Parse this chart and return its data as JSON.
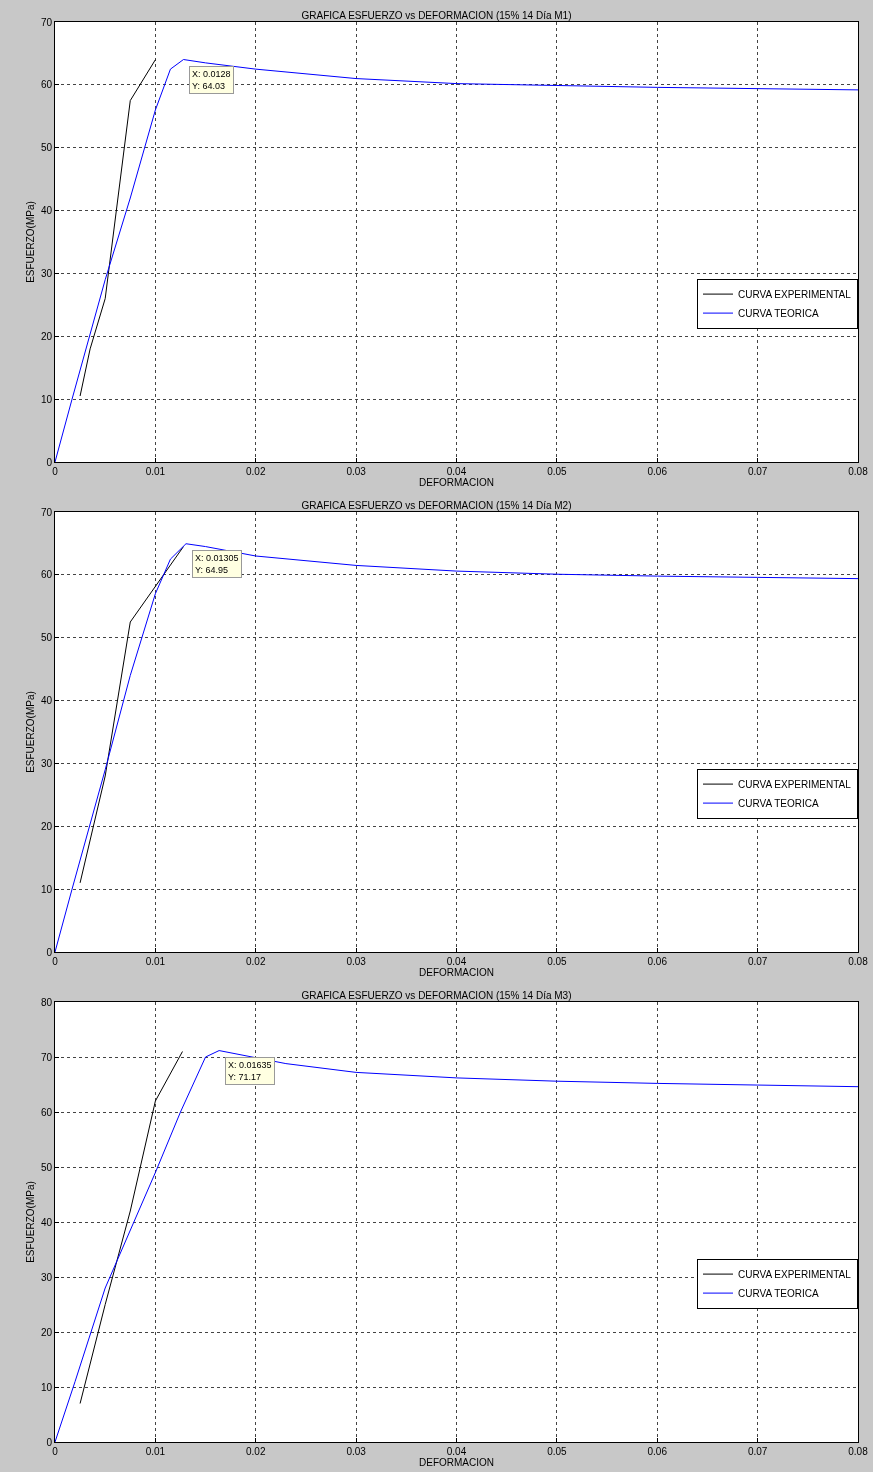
{
  "chart_data": [
    {
      "type": "line",
      "title": "GRAFICA ESFUERZO vs DEFORMACION (15% 14 Día M1)",
      "xlabel": "DEFORMACION",
      "ylabel": "ESFUERZO(MPa)",
      "xlim": [
        0,
        0.08
      ],
      "xticks": [
        0,
        0.01,
        0.02,
        0.03,
        0.04,
        0.05,
        0.06,
        0.07,
        0.08
      ],
      "ylim": [
        0,
        70
      ],
      "yticks": [
        0,
        10,
        20,
        30,
        40,
        50,
        60,
        70
      ],
      "grid": true,
      "legend": "right",
      "line_style": "solid",
      "marker": "none",
      "series": [
        {
          "name": "CURVA EXPERIMENTAL",
          "color": "#000000",
          "x": [
            0.0025,
            0.0035,
            0.005,
            0.0075,
            0.01
          ],
          "values": [
            10.5,
            18,
            26,
            57.5,
            64
          ]
        },
        {
          "name": "CURVA TEORICA",
          "color": "#0000ff",
          "x": [
            0,
            0.0017,
            0.005,
            0.0075,
            0.01,
            0.0115,
            0.0128,
            0.015,
            0.02,
            0.03,
            0.04,
            0.05,
            0.06,
            0.07,
            0.08
          ],
          "values": [
            0,
            10,
            29,
            42,
            56,
            62.5,
            64.03,
            63.5,
            62.5,
            61,
            60.2,
            59.9,
            59.6,
            59.4,
            59.2
          ]
        }
      ],
      "annotations": [
        {
          "text": "X: 0.0128\nY: 64.03",
          "x": 0.0128,
          "y": 64.03
        }
      ]
    },
    {
      "type": "line",
      "title": "GRAFICA ESFUERZO vs DEFORMACION (15% 14 Día M2)",
      "xlabel": "DEFORMACION",
      "ylabel": "ESFUERZO(MPa)",
      "xlim": [
        0,
        0.08
      ],
      "xticks": [
        0,
        0.01,
        0.02,
        0.03,
        0.04,
        0.05,
        0.06,
        0.07,
        0.08
      ],
      "ylim": [
        0,
        70
      ],
      "yticks": [
        0,
        10,
        20,
        30,
        40,
        50,
        60,
        70
      ],
      "grid": true,
      "legend": "right",
      "line_style": "solid",
      "marker": "none",
      "series": [
        {
          "name": "CURVA EXPERIMENTAL",
          "color": "#000000",
          "x": [
            0.0025,
            0.005,
            0.0075,
            0.0128
          ],
          "values": [
            11,
            28,
            52.5,
            64.5
          ]
        },
        {
          "name": "CURVA TEORICA",
          "color": "#0000ff",
          "x": [
            0,
            0.0017,
            0.005,
            0.0075,
            0.01,
            0.0115,
            0.01305,
            0.015,
            0.02,
            0.03,
            0.04,
            0.05,
            0.06,
            0.07,
            0.08
          ],
          "values": [
            0,
            10,
            29,
            44,
            57,
            62.5,
            64.95,
            64.5,
            63,
            61.5,
            60.6,
            60.1,
            59.8,
            59.6,
            59.4
          ]
        }
      ],
      "annotations": [
        {
          "text": "X: 0.01305\nY: 64.95",
          "x": 0.01305,
          "y": 64.95
        }
      ]
    },
    {
      "type": "line",
      "title": "GRAFICA ESFUERZO vs DEFORMACION (15% 14 Día M3)",
      "xlabel": "DEFORMACION",
      "ylabel": "ESFUERZO(MPa)",
      "xlim": [
        0,
        0.08
      ],
      "xticks": [
        0,
        0.01,
        0.02,
        0.03,
        0.04,
        0.05,
        0.06,
        0.07,
        0.08
      ],
      "ylim": [
        0,
        80
      ],
      "yticks": [
        0,
        10,
        20,
        30,
        40,
        50,
        60,
        70,
        80
      ],
      "grid": true,
      "legend": "right",
      "line_style": "solid",
      "marker": "none",
      "series": [
        {
          "name": "CURVA EXPERIMENTAL",
          "color": "#000000",
          "x": [
            0.0025,
            0.005,
            0.0075,
            0.01,
            0.0127
          ],
          "values": [
            7,
            25,
            42,
            62,
            71
          ]
        },
        {
          "name": "CURVA TEORICA",
          "color": "#0000ff",
          "x": [
            0,
            0.002,
            0.005,
            0.01,
            0.0125,
            0.015,
            0.01635,
            0.023,
            0.03,
            0.04,
            0.05,
            0.06,
            0.07,
            0.08
          ],
          "values": [
            0,
            11,
            28,
            49,
            60,
            70,
            71.17,
            68.8,
            67.2,
            66.2,
            65.6,
            65.2,
            64.9,
            64.6
          ]
        }
      ],
      "annotations": [
        {
          "text": "X: 0.01635\nY: 71.17",
          "x": 0.01635,
          "y": 71.17
        }
      ]
    }
  ]
}
